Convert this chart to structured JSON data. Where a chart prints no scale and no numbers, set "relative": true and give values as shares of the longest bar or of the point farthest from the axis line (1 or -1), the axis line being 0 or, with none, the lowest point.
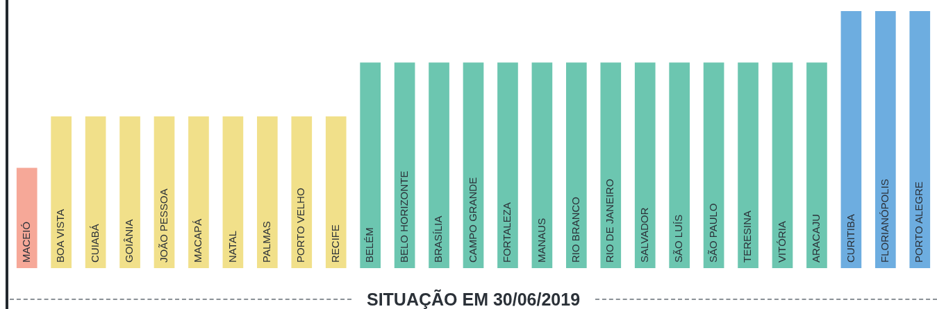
{
  "chart_data": {
    "type": "bar",
    "title": "SITUAÇÃO EM 30/06/2019",
    "relative": true,
    "categories": [
      "MACEIÓ",
      "BOA VISTA",
      "CUIABÁ",
      "GOIÂNIA",
      "JOÃO PESSOA",
      "MACAPÁ",
      "NATAL",
      "PALMAS",
      "PORTO VELHO",
      "RECIFE",
      "BELÉM",
      "BELO HORIZONTE",
      "BRASÍLIA",
      "CAMPO GRANDE",
      "FORTALEZA",
      "MANAUS",
      "RIO BRANCO",
      "RIO DE JANEIRO",
      "SALVADOR",
      "SÃO LUÍS",
      "SÃO PAULO",
      "TERESINA",
      "VITÓRIA",
      "ARACAJU",
      "CURITIBA",
      "FLORIANÓPOLIS",
      "PORTO ALEGRE"
    ],
    "values": [
      0.39,
      0.59,
      0.59,
      0.59,
      0.59,
      0.59,
      0.59,
      0.59,
      0.59,
      0.59,
      0.8,
      0.8,
      0.8,
      0.8,
      0.8,
      0.8,
      0.8,
      0.8,
      0.8,
      0.8,
      0.8,
      0.8,
      0.8,
      0.8,
      1,
      1,
      1
    ],
    "colors": [
      "#f6a898",
      "#f1e08a",
      "#f1e08a",
      "#f1e08a",
      "#f1e08a",
      "#f1e08a",
      "#f1e08a",
      "#f1e08a",
      "#f1e08a",
      "#f1e08a",
      "#6cc6b0",
      "#6cc6b0",
      "#6cc6b0",
      "#6cc6b0",
      "#6cc6b0",
      "#6cc6b0",
      "#6cc6b0",
      "#6cc6b0",
      "#6cc6b0",
      "#6cc6b0",
      "#6cc6b0",
      "#6cc6b0",
      "#6cc6b0",
      "#6cc6b0",
      "#6dade0",
      "#6dade0",
      "#6dade0"
    ],
    "legend": false
  }
}
